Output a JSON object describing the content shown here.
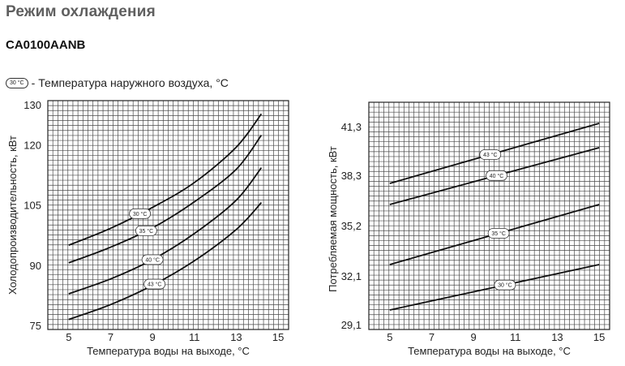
{
  "page": {
    "title": "Режим охлаждения",
    "model": "CA0100AANB",
    "legend": {
      "badge": "30 °C",
      "separator": "-",
      "text": "Температура наружного воздуха, °C"
    }
  },
  "chart_data": [
    {
      "type": "line",
      "xlabel": "Температура воды на выходе, °C",
      "ylabel": "Холодопроизводительность, кВт",
      "xlim": [
        4,
        15.5
      ],
      "ylim": [
        74,
        131
      ],
      "x_ticks": [
        5,
        7,
        9,
        11,
        13,
        15
      ],
      "y_ticks": [
        75,
        90,
        105,
        120,
        130
      ],
      "y_tick_labels": [
        "75",
        "90",
        "105",
        "120",
        "130"
      ],
      "grid": true,
      "series": [
        {
          "name": "30 °C",
          "x": [
            5,
            7,
            9,
            11,
            13,
            14.2
          ],
          "y": [
            95.0,
            99.2,
            104.4,
            110.6,
            119.4,
            127.7
          ]
        },
        {
          "name": "35 °C",
          "x": [
            5,
            7,
            9,
            11,
            13,
            14.2
          ],
          "y": [
            90.6,
            94.5,
            99.3,
            105.8,
            113.9,
            122.4
          ]
        },
        {
          "name": "40 °C",
          "x": [
            5,
            7,
            9,
            11,
            13,
            14.2
          ],
          "y": [
            82.9,
            86.6,
            91.4,
            97.9,
            106.2,
            114.3
          ]
        },
        {
          "name": "43 °C",
          "x": [
            5,
            7,
            9,
            11,
            13,
            14.2
          ],
          "y": [
            76.5,
            80.2,
            85.0,
            91.1,
            98.9,
            105.6
          ]
        }
      ],
      "tags": [
        "30 °C",
        "35 °C",
        "40 °C",
        "43 °C"
      ]
    },
    {
      "type": "line",
      "xlabel": "Температура воды на выходе, °C",
      "ylabel": "Потребляемая мощность, кВт",
      "xlim": [
        4,
        15.5
      ],
      "ylim": [
        28.8,
        42.8
      ],
      "x_ticks": [
        5,
        7,
        9,
        11,
        13,
        15
      ],
      "y_ticks": [
        29.1,
        32.1,
        35.2,
        38.3,
        41.3
      ],
      "y_tick_labels": [
        "29,1",
        "32,1",
        "35,2",
        "38,3",
        "41,3"
      ],
      "grid": true,
      "series": [
        {
          "name": "43 °C",
          "x": [
            5,
            15
          ],
          "y": [
            37.8,
            41.5
          ]
        },
        {
          "name": "40 °C",
          "x": [
            5,
            15
          ],
          "y": [
            36.5,
            40.0
          ]
        },
        {
          "name": "35 °C",
          "x": [
            5,
            15
          ],
          "y": [
            32.8,
            36.5
          ]
        },
        {
          "name": "30 °C",
          "x": [
            5,
            15
          ],
          "y": [
            30.0,
            32.8
          ]
        }
      ],
      "tags": [
        "43 °C",
        "40 °C",
        "35 °C",
        "30 °C"
      ]
    }
  ]
}
